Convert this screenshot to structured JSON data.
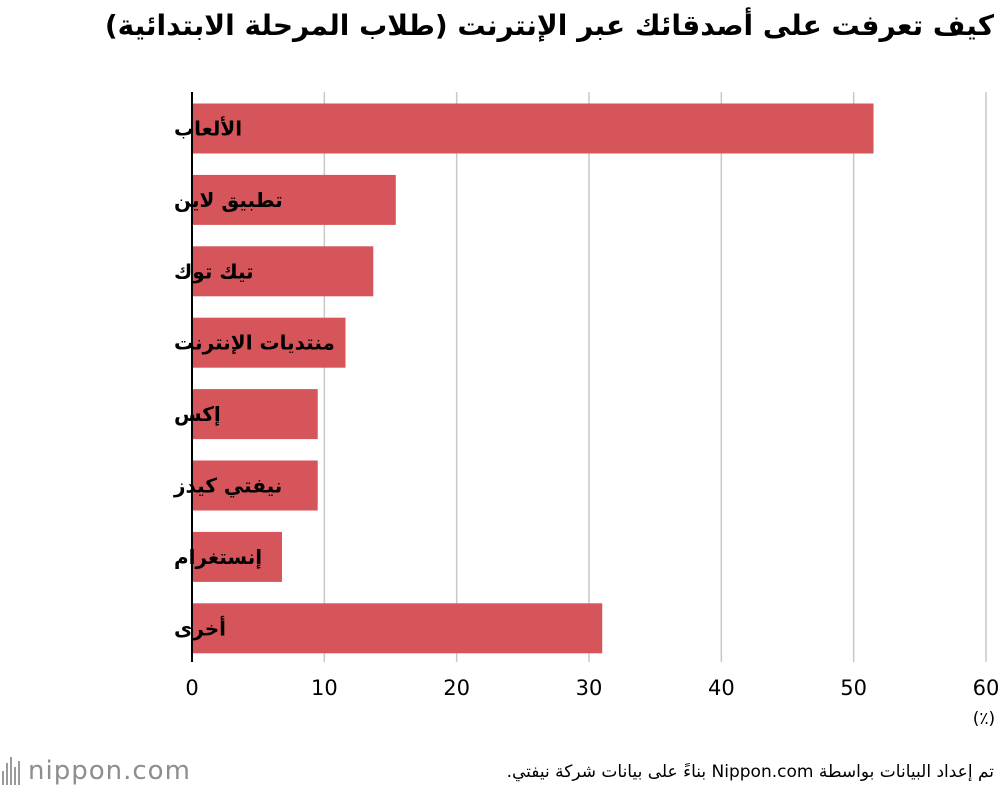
{
  "chart_data": {
    "type": "bar",
    "orientation": "horizontal",
    "title": "كيف تعرفت على أصدقائك عبر الإنترنت (طلاب المرحلة الابتدائية)",
    "categories": [
      "الألعاب",
      "تطبيق لاين",
      "تيك توك",
      "منتديات الإنترنت",
      "إكس",
      "نيفتي كيدز",
      "إنستغرام",
      "أخرى"
    ],
    "values": [
      51.5,
      15.4,
      13.7,
      11.6,
      9.5,
      9.5,
      6.8,
      31.0
    ],
    "x_ticks": [
      "0",
      "10",
      "20",
      "30",
      "40",
      "50",
      "60"
    ],
    "xlim": [
      0,
      60
    ],
    "unit_label": "(٪)",
    "grid": true,
    "bar_color": "#d6555a",
    "grid_color": "#c8c8c8"
  },
  "footer": {
    "logo_text": "nippon.com",
    "source": "تم إعداد البيانات بواسطة Nippon.com بناءً على بيانات شركة نيفتي."
  }
}
